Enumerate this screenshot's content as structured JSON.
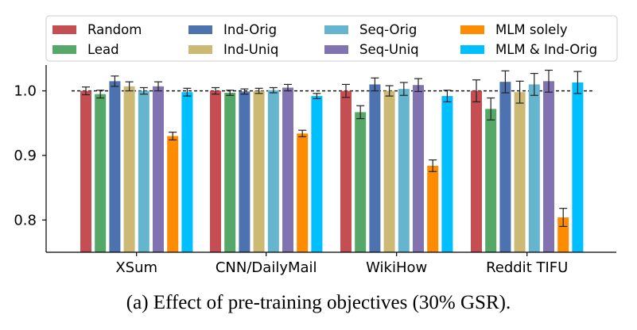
{
  "caption": "(a) Effect of pre-training objectives (30% GSR).",
  "chart_data": {
    "type": "bar",
    "categories": [
      "XSum",
      "CNN/DailyMail",
      "WikiHow",
      "Reddit TIFU"
    ],
    "ylim": [
      0.75,
      1.04
    ],
    "yticks": [
      0.8,
      0.9,
      1.0
    ],
    "ytick_labels": [
      "0.8",
      "0.9",
      "1.0"
    ],
    "reference_line": 1.0,
    "legend_placement": "top",
    "series": [
      {
        "name": "Random",
        "color": "#c44e52",
        "values": [
          1.0,
          1.0,
          1.0,
          1.0
        ],
        "errors": [
          0.006,
          0.005,
          0.01,
          0.017
        ]
      },
      {
        "name": "Lead",
        "color": "#55a868",
        "values": [
          0.995,
          0.997,
          0.967,
          0.972
        ],
        "errors": [
          0.006,
          0.004,
          0.01,
          0.017
        ]
      },
      {
        "name": "Ind-Orig",
        "color": "#4c72b0",
        "values": [
          1.015,
          0.999,
          1.01,
          1.014
        ],
        "errors": [
          0.008,
          0.004,
          0.01,
          0.017
        ]
      },
      {
        "name": "Ind-Uniq",
        "color": "#ccb974",
        "values": [
          1.007,
          1.0,
          1.0,
          0.998
        ],
        "errors": [
          0.007,
          0.004,
          0.008,
          0.017
        ]
      },
      {
        "name": "Seq-Orig",
        "color": "#64b5cd",
        "values": [
          1.0,
          1.001,
          1.003,
          1.01
        ],
        "errors": [
          0.005,
          0.004,
          0.01,
          0.017
        ]
      },
      {
        "name": "Seq-Uniq",
        "color": "#8172b2",
        "values": [
          1.007,
          1.005,
          1.009,
          1.015
        ],
        "errors": [
          0.007,
          0.005,
          0.01,
          0.017
        ]
      },
      {
        "name": "MLM solely",
        "color": "#ff8c00",
        "values": [
          0.93,
          0.934,
          0.884,
          0.804
        ],
        "errors": [
          0.006,
          0.005,
          0.009,
          0.014
        ]
      },
      {
        "name": "MLM & Ind-Orig",
        "color": "#00bfff",
        "values": [
          0.998,
          0.992,
          0.992,
          1.013
        ],
        "errors": [
          0.006,
          0.004,
          0.009,
          0.017
        ]
      }
    ]
  }
}
